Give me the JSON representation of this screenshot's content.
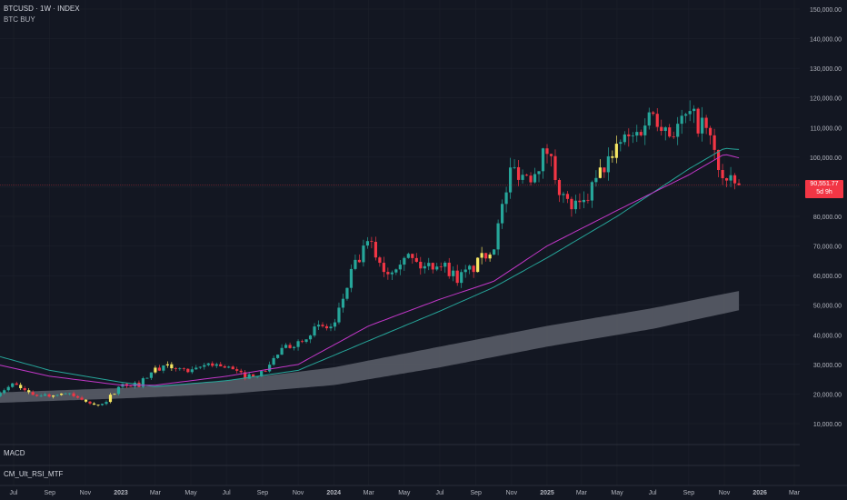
{
  "legend": {
    "title": "BTCUSD · 1W · INDEX",
    "indicator": "BTC BUY"
  },
  "panes": {
    "macd": "MACD",
    "rsi": "CM_Ult_RSI_MTF"
  },
  "price_tag": {
    "value": "90,551.77",
    "countdown": "5d 9h",
    "color": "#f23645"
  },
  "colors": {
    "background": "#131722",
    "up": "#26a69a",
    "down": "#f23645",
    "buy": "#f5e663",
    "ma_teal": "#26a69a",
    "ma_purple": "#c237c8",
    "band": "#5d606b",
    "grid": "#1e222d"
  },
  "chart_data": {
    "type": "candlestick",
    "ylim": [
      5000,
      150000
    ],
    "y_ticks": [
      "150,000.00",
      "140,000.00",
      "130,000.00",
      "120,000.00",
      "110,000.00",
      "100,000.00",
      "90,000.00",
      "80,000.00",
      "70,000.00",
      "60,000.00",
      "50,000.00",
      "40,000.00",
      "30,000.00",
      "20,000.00",
      "10,000.00"
    ],
    "y_tick_values": [
      150000,
      140000,
      130000,
      120000,
      110000,
      100000,
      90000,
      80000,
      70000,
      60000,
      50000,
      40000,
      30000,
      20000,
      10000
    ],
    "x_ticks": [
      "Jul",
      "Sep",
      "Nov",
      "2023",
      "Mar",
      "May",
      "Jul",
      "Sep",
      "Nov",
      "2024",
      "Mar",
      "May",
      "Jul",
      "Sep",
      "Nov",
      "2025",
      "Mar",
      "May",
      "Jul",
      "Sep",
      "Nov",
      "2026",
      "Mar"
    ],
    "x_tick_dates": [
      "2022-07",
      "2022-09",
      "2022-11",
      "2023-01",
      "2023-03",
      "2023-05",
      "2023-07",
      "2023-09",
      "2023-11",
      "2024-01",
      "2024-03",
      "2024-05",
      "2024-07",
      "2024-09",
      "2024-11",
      "2025-01",
      "2025-03",
      "2025-05",
      "2025-07",
      "2025-09",
      "2025-11",
      "2026-01",
      "2026-03"
    ],
    "x_tick_bold": [
      false,
      false,
      false,
      true,
      false,
      false,
      false,
      false,
      false,
      true,
      false,
      false,
      false,
      false,
      false,
      true,
      false,
      false,
      false,
      false,
      false,
      true,
      false
    ],
    "close_path": [
      [
        "2022-06",
        20000
      ],
      [
        "2022-07",
        23300
      ],
      [
        "2022-08",
        20000
      ],
      [
        "2022-09",
        19400
      ],
      [
        "2022-10",
        20500
      ],
      [
        "2022-11",
        17200
      ],
      [
        "2022-12",
        16500
      ],
      [
        "2023-01",
        23100
      ],
      [
        "2023-02",
        23200
      ],
      [
        "2023-03",
        28500
      ],
      [
        "2023-04",
        29300
      ],
      [
        "2023-05",
        27200
      ],
      [
        "2023-06",
        30500
      ],
      [
        "2023-07",
        29200
      ],
      [
        "2023-08",
        26000
      ],
      [
        "2023-09",
        27000
      ],
      [
        "2023-10",
        34500
      ],
      [
        "2023-11",
        37700
      ],
      [
        "2023-12",
        42300
      ],
      [
        "2024-01",
        42600
      ],
      [
        "2024-02",
        61200
      ],
      [
        "2024-03",
        71300
      ],
      [
        "2024-04",
        60700
      ],
      [
        "2024-05",
        67500
      ],
      [
        "2024-06",
        62700
      ],
      [
        "2024-07",
        64600
      ],
      [
        "2024-08",
        59000
      ],
      [
        "2024-09",
        63300
      ],
      [
        "2024-10",
        70200
      ],
      [
        "2024-11",
        96400
      ],
      [
        "2024-12",
        93400
      ],
      [
        "2025-01",
        102400
      ],
      [
        "2025-02",
        84300
      ],
      [
        "2025-03",
        82500
      ],
      [
        "2025-04",
        94200
      ],
      [
        "2025-05",
        104600
      ],
      [
        "2025-06",
        107100
      ],
      [
        "2025-07",
        115700
      ],
      [
        "2025-08",
        108200
      ],
      [
        "2025-09",
        114000
      ],
      [
        "2025-10",
        109500
      ],
      [
        "2025-11",
        91000
      ],
      [
        "2025-12",
        90551
      ]
    ],
    "buy_signal_dates": [
      "2022-07",
      "2022-09",
      "2022-11",
      "2022-12",
      "2023-03",
      "2024-09",
      "2025-04"
    ],
    "ma_teal": [
      [
        "2022-06",
        33000
      ],
      [
        "2022-09",
        28000
      ],
      [
        "2023-01",
        24000
      ],
      [
        "2023-03",
        22500
      ],
      [
        "2023-07",
        24500
      ],
      [
        "2023-11",
        28000
      ],
      [
        "2024-03",
        38000
      ],
      [
        "2024-07",
        48000
      ],
      [
        "2024-10",
        56000
      ],
      [
        "2025-01",
        66000
      ],
      [
        "2025-05",
        80000
      ],
      [
        "2025-09",
        96000
      ],
      [
        "2025-11",
        103000
      ],
      [
        "2025-12",
        102500
      ]
    ],
    "ma_purple": [
      [
        "2022-06",
        30000
      ],
      [
        "2022-09",
        26000
      ],
      [
        "2023-01",
        23000
      ],
      [
        "2023-03",
        23000
      ],
      [
        "2023-07",
        26000
      ],
      [
        "2023-11",
        30000
      ],
      [
        "2024-03",
        43000
      ],
      [
        "2024-07",
        52000
      ],
      [
        "2024-10",
        58000
      ],
      [
        "2025-01",
        70000
      ],
      [
        "2025-05",
        82000
      ],
      [
        "2025-09",
        94000
      ],
      [
        "2025-11",
        101000
      ],
      [
        "2025-12",
        99500
      ]
    ],
    "band_upper": [
      [
        "2022-06",
        20500
      ],
      [
        "2023-01",
        22000
      ],
      [
        "2023-07",
        24500
      ],
      [
        "2024-01",
        29000
      ],
      [
        "2024-07",
        36000
      ],
      [
        "2025-01",
        43000
      ],
      [
        "2025-07",
        49000
      ],
      [
        "2025-12",
        55000
      ]
    ],
    "band_lower": [
      [
        "2022-06",
        17000
      ],
      [
        "2023-01",
        18500
      ],
      [
        "2023-07",
        20000
      ],
      [
        "2024-01",
        23000
      ],
      [
        "2024-07",
        29000
      ],
      [
        "2025-01",
        36000
      ],
      [
        "2025-07",
        42000
      ],
      [
        "2025-12",
        48500
      ]
    ],
    "last_price": 90551.77
  }
}
